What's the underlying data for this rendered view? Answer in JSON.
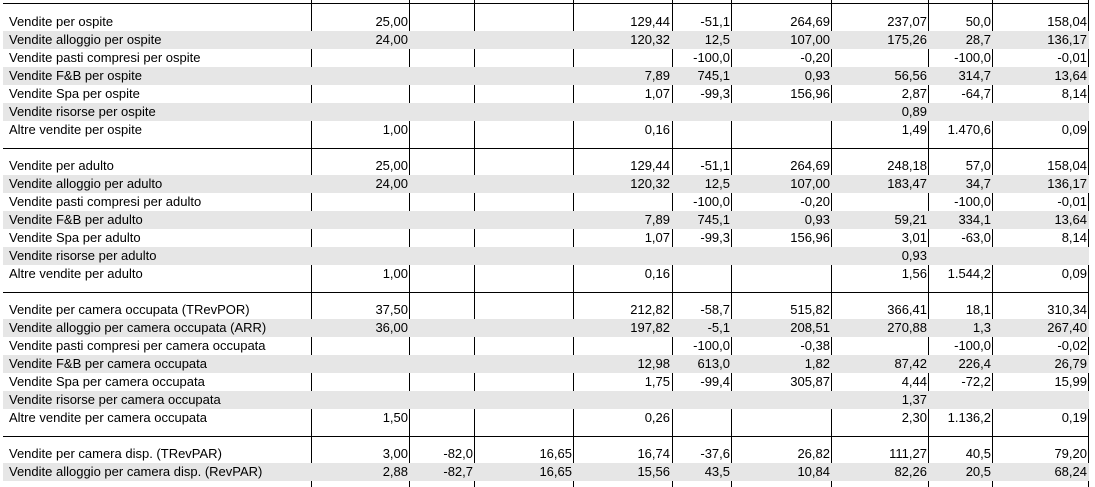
{
  "groups": [
    {
      "rows": [
        {
          "label": "Vendite per ospite",
          "values": [
            "25,00",
            "",
            "",
            "129,44",
            "-51,1",
            "264,69",
            "237,07",
            "50,0",
            "158,04"
          ]
        },
        {
          "label": "Vendite alloggio per ospite",
          "values": [
            "24,00",
            "",
            "",
            "120,32",
            "12,5",
            "107,00",
            "175,26",
            "28,7",
            "136,17"
          ]
        },
        {
          "label": "Vendite pasti compresi per ospite",
          "values": [
            "",
            "",
            "",
            "",
            "-100,0",
            "-0,20",
            "",
            "-100,0",
            "-0,01"
          ]
        },
        {
          "label": "Vendite F&B per ospite",
          "values": [
            "",
            "",
            "",
            "7,89",
            "745,1",
            "0,93",
            "56,56",
            "314,7",
            "13,64"
          ]
        },
        {
          "label": "Vendite Spa per ospite",
          "values": [
            "",
            "",
            "",
            "1,07",
            "-99,3",
            "156,96",
            "2,87",
            "-64,7",
            "8,14"
          ]
        },
        {
          "label": "Vendite risorse per ospite",
          "values": [
            "",
            "",
            "",
            "",
            "",
            "",
            "0,89",
            "",
            ""
          ]
        },
        {
          "label": "Altre vendite per ospite",
          "values": [
            "1,00",
            "",
            "",
            "0,16",
            "",
            "",
            "1,49",
            "1.470,6",
            "0,09"
          ]
        }
      ]
    },
    {
      "rows": [
        {
          "label": "Vendite per adulto",
          "values": [
            "25,00",
            "",
            "",
            "129,44",
            "-51,1",
            "264,69",
            "248,18",
            "57,0",
            "158,04"
          ]
        },
        {
          "label": "Vendite alloggio per adulto",
          "values": [
            "24,00",
            "",
            "",
            "120,32",
            "12,5",
            "107,00",
            "183,47",
            "34,7",
            "136,17"
          ]
        },
        {
          "label": "Vendite pasti compresi per adulto",
          "values": [
            "",
            "",
            "",
            "",
            "-100,0",
            "-0,20",
            "",
            "-100,0",
            "-0,01"
          ]
        },
        {
          "label": "Vendite F&B per adulto",
          "values": [
            "",
            "",
            "",
            "7,89",
            "745,1",
            "0,93",
            "59,21",
            "334,1",
            "13,64"
          ]
        },
        {
          "label": "Vendite Spa per adulto",
          "values": [
            "",
            "",
            "",
            "1,07",
            "-99,3",
            "156,96",
            "3,01",
            "-63,0",
            "8,14"
          ]
        },
        {
          "label": "Vendite risorse per adulto",
          "values": [
            "",
            "",
            "",
            "",
            "",
            "",
            "0,93",
            "",
            ""
          ]
        },
        {
          "label": "Altre vendite per adulto",
          "values": [
            "1,00",
            "",
            "",
            "0,16",
            "",
            "",
            "1,56",
            "1.544,2",
            "0,09"
          ]
        }
      ]
    },
    {
      "rows": [
        {
          "label": "Vendite per camera occupata (TRevPOR)",
          "values": [
            "37,50",
            "",
            "",
            "212,82",
            "-58,7",
            "515,82",
            "366,41",
            "18,1",
            "310,34"
          ]
        },
        {
          "label": "Vendite alloggio per camera occupata (ARR)",
          "values": [
            "36,00",
            "",
            "",
            "197,82",
            "-5,1",
            "208,51",
            "270,88",
            "1,3",
            "267,40"
          ]
        },
        {
          "label": "Vendite pasti compresi per camera occupata",
          "values": [
            "",
            "",
            "",
            "",
            "-100,0",
            "-0,38",
            "",
            "-100,0",
            "-0,02"
          ]
        },
        {
          "label": "Vendite F&B per camera occupata",
          "values": [
            "",
            "",
            "",
            "12,98",
            "613,0",
            "1,82",
            "87,42",
            "226,4",
            "26,79"
          ]
        },
        {
          "label": "Vendite Spa per camera occupata",
          "values": [
            "",
            "",
            "",
            "1,75",
            "-99,4",
            "305,87",
            "4,44",
            "-72,2",
            "15,99"
          ]
        },
        {
          "label": "Vendite risorse per camera occupata",
          "values": [
            "",
            "",
            "",
            "",
            "",
            "",
            "1,37",
            "",
            ""
          ]
        },
        {
          "label": "Altre vendite per camera occupata",
          "values": [
            "1,50",
            "",
            "",
            "0,26",
            "",
            "",
            "2,30",
            "1.136,2",
            "0,19"
          ]
        }
      ]
    },
    {
      "rows": [
        {
          "label": "Vendite per camera disp. (TRevPAR)",
          "values": [
            "3,00",
            "-82,0",
            "16,65",
            "16,74",
            "-37,6",
            "26,82",
            "111,27",
            "40,5",
            "79,20"
          ]
        },
        {
          "label": "Vendite alloggio per camera disp. (RevPAR)",
          "values": [
            "2,88",
            "-82,7",
            "16,65",
            "15,56",
            "43,5",
            "10,84",
            "82,26",
            "20,5",
            "68,24"
          ]
        }
      ]
    }
  ]
}
